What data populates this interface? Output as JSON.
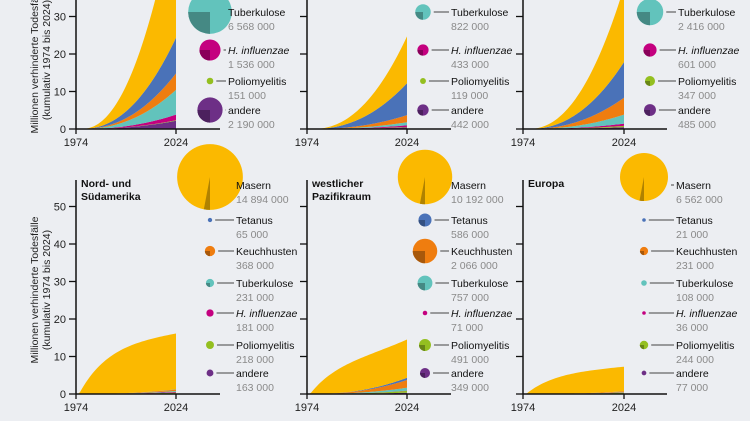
{
  "colors": {
    "Masern": "#fbb900",
    "Tetanus": "#4a72b8",
    "Keuchhusten": "#ef7d0f",
    "Tuberkulose": "#62c3bc",
    "H. influenzae": "#c4007f",
    "Poliomyelitis": "#94bf20",
    "andere": "#6d2f86"
  },
  "chart_data": [
    {
      "type": "area",
      "title": "",
      "position": "top-left",
      "x_range": [
        1974,
        2024
      ],
      "x_ticks": [
        "1974",
        "2024"
      ],
      "ylim": [
        0,
        35
      ],
      "y_ticks": [
        "0",
        "10",
        "20",
        "30"
      ],
      "ylabel": "Millionen verhinderte Todesfälle (kumulativ 1974 bis 2024)",
      "stack_totals_2024": {
        "andere": 2.2,
        "Poliomyelitis": 0.15,
        "H. influenzae": 1.5,
        "Tuberkulose": 6.6,
        "Keuchhusten": 4.4,
        "Tetanus": 9.5,
        "Masern": 35
      },
      "legend": [
        {
          "name": "Tuberkulose",
          "value": "6 568 000"
        },
        {
          "name": "H. influenzae",
          "value": "1 536 000",
          "italic": true
        },
        {
          "name": "Poliomyelitis",
          "value": "151 000"
        },
        {
          "name": "andere",
          "value": "2 190 000"
        }
      ]
    },
    {
      "type": "area",
      "title": "",
      "position": "top-center",
      "x_range": [
        1974,
        2024
      ],
      "x_ticks": [
        "1974",
        "2024"
      ],
      "ylim": [
        0,
        35
      ],
      "stack_totals_2024": {
        "andere": 0.44,
        "Poliomyelitis": 0.12,
        "H. influenzae": 0.43,
        "Tuberkulose": 0.82,
        "Keuchhusten": 1.9,
        "Tetanus": 8.5,
        "Masern": 12.5
      },
      "legend": [
        {
          "name": "Tuberkulose",
          "value": "822 000"
        },
        {
          "name": "H. influenzae",
          "value": "433 000",
          "italic": true
        },
        {
          "name": "Poliomyelitis",
          "value": "119 000"
        },
        {
          "name": "andere",
          "value": "442 000"
        }
      ]
    },
    {
      "type": "area",
      "title": "",
      "position": "top-right",
      "x_range": [
        1974,
        2024
      ],
      "x_ticks": [
        "1974",
        "2024"
      ],
      "ylim": [
        0,
        35
      ],
      "stack_totals_2024": {
        "andere": 0.49,
        "Poliomyelitis": 0.35,
        "H. influenzae": 0.6,
        "Tuberkulose": 2.4,
        "Keuchhusten": 4.5,
        "Tetanus": 9.5,
        "Masern": 20
      },
      "legend": [
        {
          "name": "Tuberkulose",
          "value": "2 416 000"
        },
        {
          "name": "H. influenzae",
          "value": "601 000",
          "italic": true
        },
        {
          "name": "Poliomyelitis",
          "value": "347 000"
        },
        {
          "name": "andere",
          "value": "485 000"
        }
      ]
    },
    {
      "type": "area",
      "title": "Nord- und Südamerika",
      "title_lines": [
        "Nord- und",
        "Südamerika"
      ],
      "position": "bottom-left",
      "x_range": [
        1974,
        2024
      ],
      "x_ticks": [
        "1974",
        "2024"
      ],
      "ylim": [
        0,
        55
      ],
      "y_ticks": [
        "0",
        "10",
        "20",
        "30",
        "40",
        "50"
      ],
      "ylabel": "Millionen verhinderte Todesfälle (kumulativ 1974 bis 2024)",
      "stack_totals_2024": {
        "andere": 0.16,
        "Poliomyelitis": 0.22,
        "H. influenzae": 0.18,
        "Tuberkulose": 0.23,
        "Keuchhusten": 0.37,
        "Tetanus": 0.07,
        "Masern": 14.9
      },
      "legend": [
        {
          "name": "Masern",
          "value": "14 894 000"
        },
        {
          "name": "Tetanus",
          "value": "65 000"
        },
        {
          "name": "Keuchhusten",
          "value": "368 000"
        },
        {
          "name": "Tuberkulose",
          "value": "231 000"
        },
        {
          "name": "H. influenzae",
          "value": "181 000",
          "italic": true
        },
        {
          "name": "Poliomyelitis",
          "value": "218 000"
        },
        {
          "name": "andere",
          "value": "163 000"
        }
      ]
    },
    {
      "type": "area",
      "title": "westlicher Pazifikraum",
      "title_lines": [
        "westlicher",
        "Pazifikraum"
      ],
      "position": "bottom-center",
      "x_range": [
        1974,
        2024
      ],
      "x_ticks": [
        "1974",
        "2024"
      ],
      "ylim": [
        0,
        55
      ],
      "stack_totals_2024": {
        "andere": 0.35,
        "Poliomyelitis": 0.49,
        "H. influenzae": 0.07,
        "Tuberkulose": 0.76,
        "Keuchhusten": 2.07,
        "Tetanus": 0.59,
        "Masern": 10.19
      },
      "legend": [
        {
          "name": "Masern",
          "value": "10 192 000"
        },
        {
          "name": "Tetanus",
          "value": "586 000"
        },
        {
          "name": "Keuchhusten",
          "value": "2 066 000"
        },
        {
          "name": "Tuberkulose",
          "value": "757 000"
        },
        {
          "name": "H. influenzae",
          "value": "71 000",
          "italic": true
        },
        {
          "name": "Poliomyelitis",
          "value": "491 000"
        },
        {
          "name": "andere",
          "value": "349 000"
        }
      ]
    },
    {
      "type": "area",
      "title": "Europa",
      "title_lines": [
        "Europa"
      ],
      "position": "bottom-right",
      "x_range": [
        1974,
        2024
      ],
      "x_ticks": [
        "1974",
        "2024"
      ],
      "ylim": [
        0,
        55
      ],
      "stack_totals_2024": {
        "andere": 0.08,
        "Poliomyelitis": 0.24,
        "H. influenzae": 0.04,
        "Tuberkulose": 0.11,
        "Keuchhusten": 0.23,
        "Tetanus": 0.02,
        "Masern": 6.56
      },
      "legend": [
        {
          "name": "Masern",
          "value": "6 562 000"
        },
        {
          "name": "Tetanus",
          "value": "21 000"
        },
        {
          "name": "Keuchhusten",
          "value": "231 000"
        },
        {
          "name": "Tuberkulose",
          "value": "108 000"
        },
        {
          "name": "H. influenzae",
          "value": "36 000",
          "italic": true
        },
        {
          "name": "Poliomyelitis",
          "value": "244 000"
        },
        {
          "name": "andere",
          "value": "77 000"
        }
      ]
    }
  ]
}
